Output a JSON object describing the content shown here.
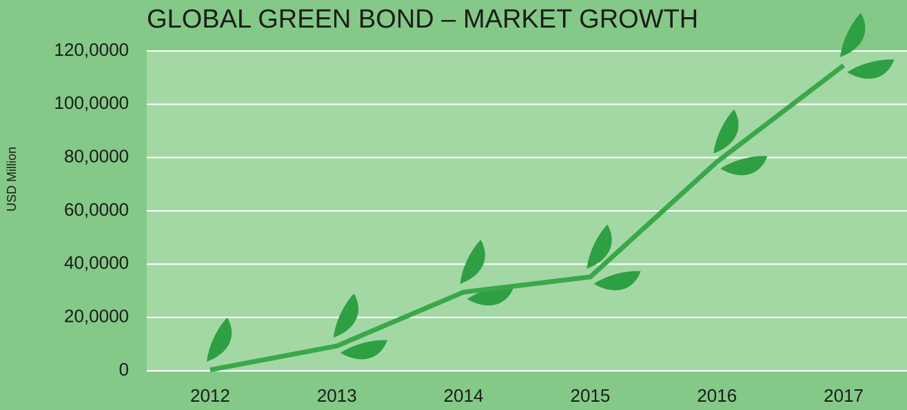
{
  "chart_data": {
    "type": "line",
    "title": "GLOBAL GREEN BOND – MARKET GROWTH",
    "y_label": "USD Million",
    "categories": [
      "2012",
      "2013",
      "2014",
      "2015",
      "2016",
      "2017"
    ],
    "values": [
      3000,
      93000,
      295000,
      352000,
      784000,
      1146000
    ],
    "color": "#3aa84a",
    "ylim": [
      0,
      1200000
    ],
    "yticks": [
      0,
      {
        "value": 200000,
        "label": "20,0000"
      },
      {
        "value": 400000,
        "label": "40,0000"
      },
      {
        "value": 600000,
        "label": "60,0000"
      },
      {
        "value": 800000,
        "label": "80,0000"
      },
      {
        "value": 1000000,
        "label": "100,0000"
      },
      {
        "value": 1200000,
        "label": "120,0000"
      }
    ],
    "grid": true
  }
}
